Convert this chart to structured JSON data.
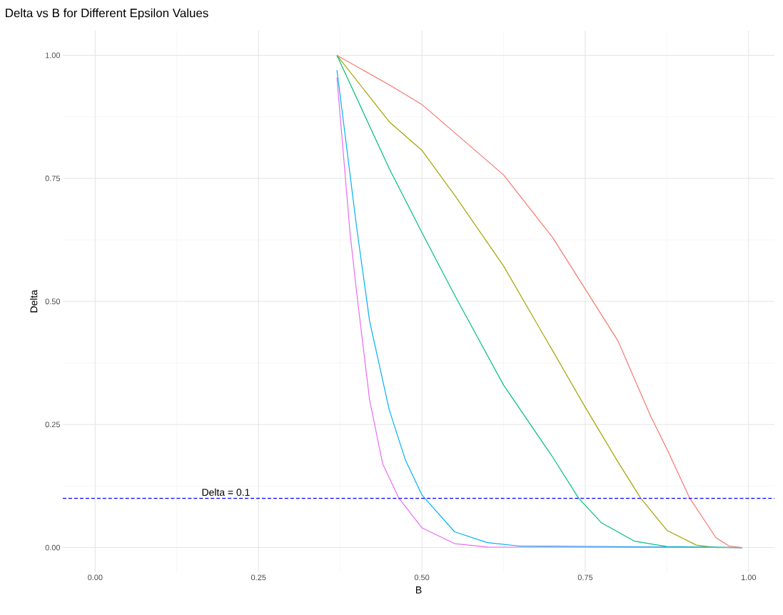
{
  "chart_data": {
    "type": "line",
    "title": "Delta vs B for Different Epsilon Values",
    "xlabel": "B",
    "ylabel": "Delta",
    "grid": true,
    "marker": "none",
    "line_style": "solid",
    "xlim": [
      -0.0495,
      1.0395
    ],
    "ylim": [
      -0.05,
      1.05
    ],
    "xticks": [
      {
        "value": 0,
        "label": "0.00"
      },
      {
        "value": 0.25,
        "label": "0.25"
      },
      {
        "value": 0.5,
        "label": "0.50"
      },
      {
        "value": 0.75,
        "label": "0.75"
      },
      {
        "value": 1,
        "label": "1.00"
      }
    ],
    "yticks": [
      {
        "value": 0,
        "label": "0.00"
      },
      {
        "value": 0.25,
        "label": "0.25"
      },
      {
        "value": 0.5,
        "label": "0.50"
      },
      {
        "value": 0.75,
        "label": "0.75"
      },
      {
        "value": 1,
        "label": "1.00"
      }
    ],
    "ref_lines": [
      {
        "axis": "y",
        "value": 0.1,
        "label": "Delta = 0.1",
        "color": "#0000ff",
        "line_style": "dashed"
      }
    ],
    "series": [
      {
        "color": "#f8766d",
        "x": [
          0.37,
          0.45,
          0.5,
          0.55,
          0.625,
          0.7,
          0.75,
          0.8,
          0.85,
          0.875,
          0.91,
          0.95,
          0.97,
          0.99
        ],
        "values": [
          1.0,
          0.94,
          0.9,
          0.843,
          0.757,
          0.63,
          0.525,
          0.42,
          0.267,
          0.2,
          0.1,
          0.02,
          0.003,
          0
        ]
      },
      {
        "color": "#a3a500",
        "x": [
          0.37,
          0.45,
          0.5,
          0.55,
          0.625,
          0.7,
          0.75,
          0.8,
          0.835,
          0.875,
          0.92,
          0.95,
          0.99
        ],
        "values": [
          1.0,
          0.865,
          0.807,
          0.716,
          0.572,
          0.4,
          0.285,
          0.174,
          0.1,
          0.035,
          0.005,
          0,
          0
        ]
      },
      {
        "color": "#00bf7d",
        "x": [
          0.37,
          0.45,
          0.5,
          0.55,
          0.625,
          0.7,
          0.74,
          0.775,
          0.825,
          0.875,
          0.99
        ],
        "values": [
          1.0,
          0.77,
          0.64,
          0.513,
          0.33,
          0.184,
          0.1,
          0.05,
          0.013,
          0.002,
          0
        ]
      },
      {
        "color": "#00b0f6",
        "x": [
          0.37,
          0.38,
          0.4,
          0.42,
          0.45,
          0.475,
          0.5,
          0.55,
          0.6,
          0.65,
          0.99
        ],
        "values": [
          0.97,
          0.865,
          0.652,
          0.46,
          0.28,
          0.177,
          0.107,
          0.032,
          0.01,
          0.003,
          0
        ]
      },
      {
        "color": "#e76bf3",
        "x": [
          0.37,
          0.39,
          0.4,
          0.42,
          0.44,
          0.465,
          0.5,
          0.55,
          0.6,
          0.99
        ],
        "values": [
          0.955,
          0.64,
          0.52,
          0.3,
          0.17,
          0.1,
          0.04,
          0.008,
          0.001,
          0
        ]
      }
    ]
  }
}
